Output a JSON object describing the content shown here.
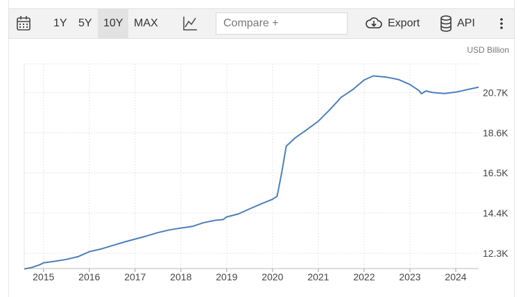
{
  "toolbar": {
    "ranges": [
      "1Y",
      "5Y",
      "10Y",
      "MAX"
    ],
    "active_range": "10Y",
    "compare_placeholder": "Compare +",
    "export_label": "Export",
    "api_label": "API"
  },
  "chart_data": {
    "type": "line",
    "unit_label": "USD Billion",
    "x_ticks": [
      "2015",
      "2016",
      "2017",
      "2018",
      "2019",
      "2020",
      "2021",
      "2022",
      "2023",
      "2024"
    ],
    "y_ticks": [
      "12.3K",
      "14.4K",
      "16.5K",
      "18.6K",
      "20.7K"
    ],
    "ylim": [
      11500,
      22200
    ],
    "xlim": [
      2014.58,
      2024.5
    ],
    "grid": true,
    "series": [
      {
        "color": "#4a7ebb",
        "points": [
          [
            2014.58,
            11480
          ],
          [
            2014.75,
            11560
          ],
          [
            2014.92,
            11700
          ],
          [
            2015.0,
            11800
          ],
          [
            2015.25,
            11880
          ],
          [
            2015.5,
            11980
          ],
          [
            2015.75,
            12120
          ],
          [
            2016.0,
            12380
          ],
          [
            2016.25,
            12520
          ],
          [
            2016.5,
            12700
          ],
          [
            2016.75,
            12880
          ],
          [
            2017.0,
            13040
          ],
          [
            2017.25,
            13200
          ],
          [
            2017.5,
            13380
          ],
          [
            2017.75,
            13520
          ],
          [
            2018.0,
            13620
          ],
          [
            2018.25,
            13700
          ],
          [
            2018.5,
            13900
          ],
          [
            2018.75,
            14020
          ],
          [
            2018.92,
            14060
          ],
          [
            2019.0,
            14200
          ],
          [
            2019.25,
            14350
          ],
          [
            2019.5,
            14620
          ],
          [
            2019.75,
            14880
          ],
          [
            2020.0,
            15120
          ],
          [
            2020.1,
            15280
          ],
          [
            2020.2,
            16500
          ],
          [
            2020.3,
            17900
          ],
          [
            2020.5,
            18340
          ],
          [
            2020.75,
            18760
          ],
          [
            2021.0,
            19200
          ],
          [
            2021.25,
            19800
          ],
          [
            2021.5,
            20450
          ],
          [
            2021.75,
            20850
          ],
          [
            2022.0,
            21350
          ],
          [
            2022.2,
            21570
          ],
          [
            2022.5,
            21500
          ],
          [
            2022.75,
            21380
          ],
          [
            2023.0,
            21120
          ],
          [
            2023.2,
            20800
          ],
          [
            2023.25,
            20640
          ],
          [
            2023.35,
            20780
          ],
          [
            2023.5,
            20700
          ],
          [
            2023.75,
            20650
          ],
          [
            2024.0,
            20720
          ],
          [
            2024.25,
            20850
          ],
          [
            2024.5,
            20980
          ]
        ]
      }
    ]
  }
}
